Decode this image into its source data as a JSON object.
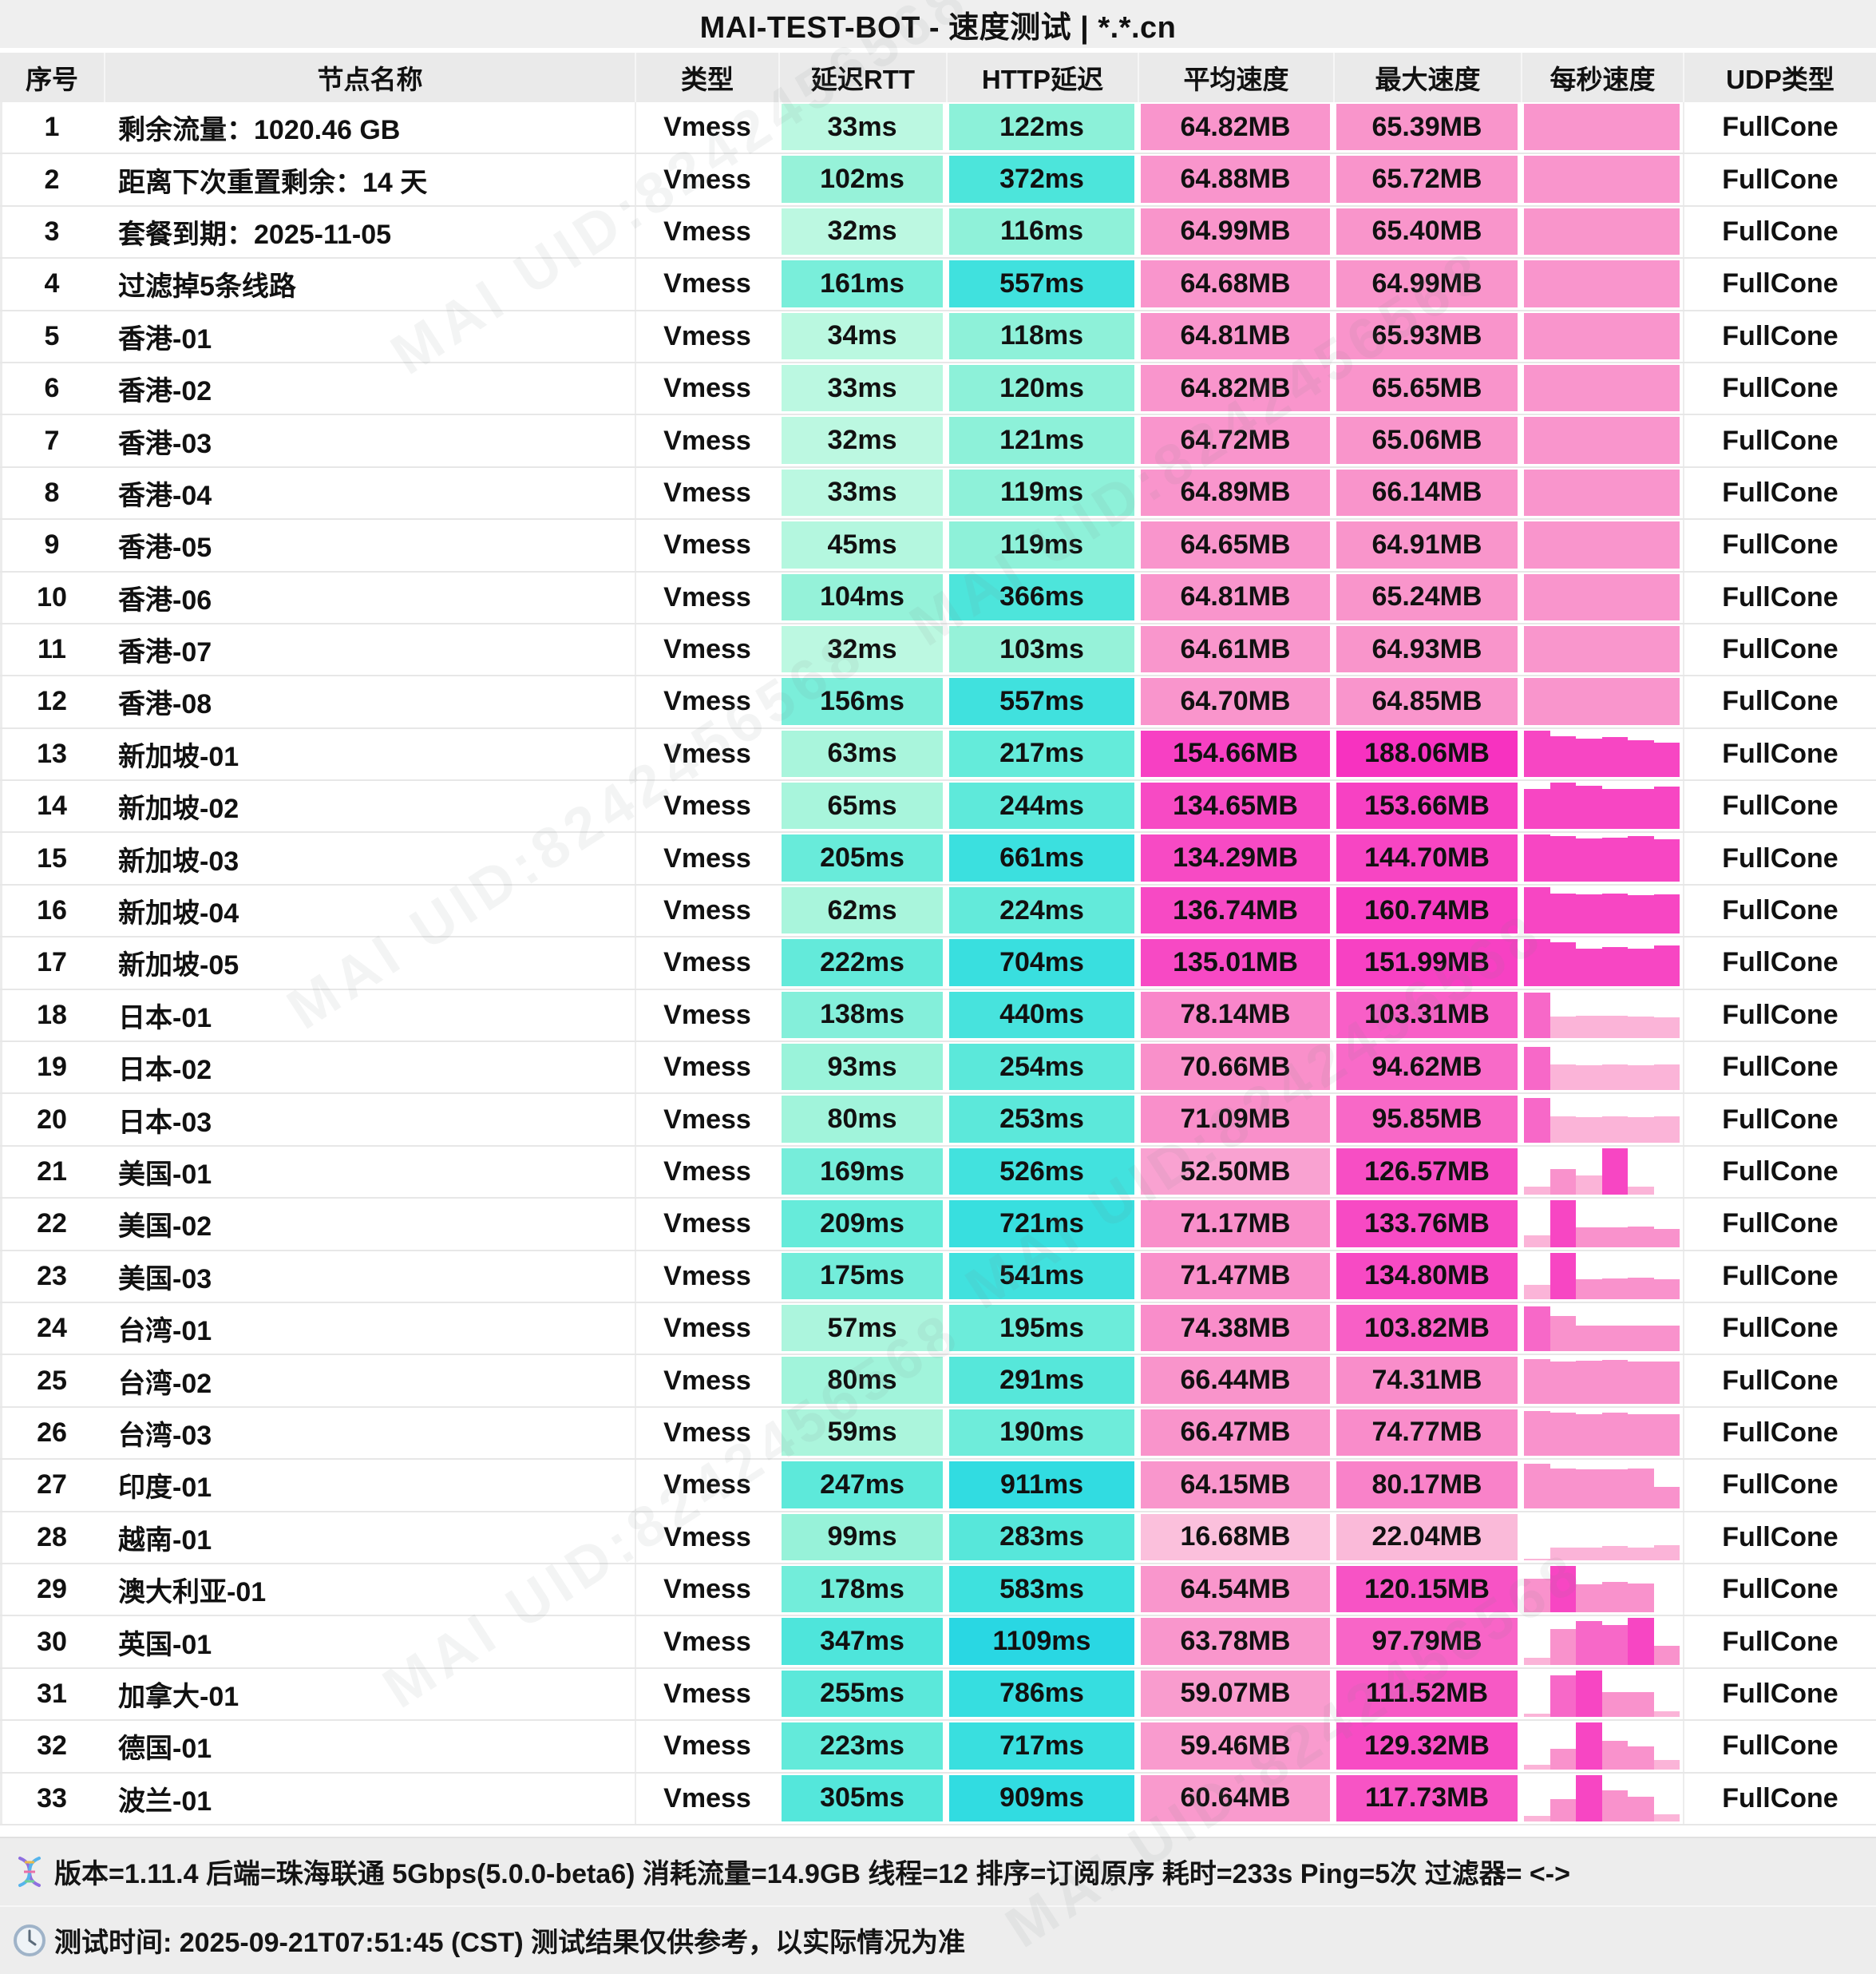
{
  "title": "MAI-TEST-BOT - 速度测试 | *.*.cn",
  "columns": [
    "序号",
    "节点名称",
    "类型",
    "延迟RTT",
    "HTTP延迟",
    "平均速度",
    "最大速度",
    "每秒速度",
    "UDP类型"
  ],
  "watermark": "MAI UID:8242456568",
  "palette": {
    "latency_stops": [
      [
        30,
        "#bdf8e1"
      ],
      [
        60,
        "#aaf5dc"
      ],
      [
        100,
        "#97f2d9"
      ],
      [
        160,
        "#79eeda"
      ],
      [
        210,
        "#66ebda"
      ],
      [
        260,
        "#5ae8da"
      ],
      [
        350,
        "#4ee5db"
      ],
      [
        450,
        "#46e3dd"
      ],
      [
        570,
        "#3fe1de"
      ],
      [
        730,
        "#38dfdf"
      ],
      [
        930,
        "#30dce1"
      ],
      [
        1120,
        "#29d7e3"
      ]
    ],
    "speed_stops": [
      [
        15,
        "#fbc2dd"
      ],
      [
        25,
        "#fab7d8"
      ],
      [
        55,
        "#f9a0d0"
      ],
      [
        66,
        "#f994cb"
      ],
      [
        75,
        "#f98cca"
      ],
      [
        90,
        "#f870c8"
      ],
      [
        100,
        "#f862c7"
      ],
      [
        115,
        "#f756c5"
      ],
      [
        130,
        "#f74cc4"
      ],
      [
        150,
        "#f742c3"
      ],
      [
        170,
        "#f73ac2"
      ],
      [
        190,
        "#f731c0"
      ]
    ],
    "bar_colors": {
      "hot": "#f746c3",
      "mid": "#f768c8",
      "pink": "#f992cc",
      "light": "#fbb4d8"
    }
  },
  "rows": [
    {
      "idx": "1",
      "name": "剩余流量：1020.46 GB",
      "type": "Vmess",
      "rtt": "33ms",
      "rtt_ms": 33,
      "http": "122ms",
      "http_ms": 122,
      "avg": "64.82MB",
      "avg_mb": 64.82,
      "max": "65.39MB",
      "max_mb": 65.39,
      "udp": "FullCone",
      "bars": "solid"
    },
    {
      "idx": "2",
      "name": "距离下次重置剩余：14 天",
      "type": "Vmess",
      "rtt": "102ms",
      "rtt_ms": 102,
      "http": "372ms",
      "http_ms": 372,
      "avg": "64.88MB",
      "avg_mb": 64.88,
      "max": "65.72MB",
      "max_mb": 65.72,
      "udp": "FullCone",
      "bars": "solid"
    },
    {
      "idx": "3",
      "name": "套餐到期：2025-11-05",
      "type": "Vmess",
      "rtt": "32ms",
      "rtt_ms": 32,
      "http": "116ms",
      "http_ms": 116,
      "avg": "64.99MB",
      "avg_mb": 64.99,
      "max": "65.40MB",
      "max_mb": 65.4,
      "udp": "FullCone",
      "bars": "solid"
    },
    {
      "idx": "4",
      "name": "过滤掉5条线路",
      "type": "Vmess",
      "rtt": "161ms",
      "rtt_ms": 161,
      "http": "557ms",
      "http_ms": 557,
      "avg": "64.68MB",
      "avg_mb": 64.68,
      "max": "64.99MB",
      "max_mb": 64.99,
      "udp": "FullCone",
      "bars": "solid"
    },
    {
      "idx": "5",
      "name": "香港-01",
      "type": "Vmess",
      "rtt": "34ms",
      "rtt_ms": 34,
      "http": "118ms",
      "http_ms": 118,
      "avg": "64.81MB",
      "avg_mb": 64.81,
      "max": "65.93MB",
      "max_mb": 65.93,
      "udp": "FullCone",
      "bars": "solid"
    },
    {
      "idx": "6",
      "name": "香港-02",
      "type": "Vmess",
      "rtt": "33ms",
      "rtt_ms": 33,
      "http": "120ms",
      "http_ms": 120,
      "avg": "64.82MB",
      "avg_mb": 64.82,
      "max": "65.65MB",
      "max_mb": 65.65,
      "udp": "FullCone",
      "bars": "solid"
    },
    {
      "idx": "7",
      "name": "香港-03",
      "type": "Vmess",
      "rtt": "32ms",
      "rtt_ms": 32,
      "http": "121ms",
      "http_ms": 121,
      "avg": "64.72MB",
      "avg_mb": 64.72,
      "max": "65.06MB",
      "max_mb": 65.06,
      "udp": "FullCone",
      "bars": "solid"
    },
    {
      "idx": "8",
      "name": "香港-04",
      "type": "Vmess",
      "rtt": "33ms",
      "rtt_ms": 33,
      "http": "119ms",
      "http_ms": 119,
      "avg": "64.89MB",
      "avg_mb": 64.89,
      "max": "66.14MB",
      "max_mb": 66.14,
      "udp": "FullCone",
      "bars": "solid"
    },
    {
      "idx": "9",
      "name": "香港-05",
      "type": "Vmess",
      "rtt": "45ms",
      "rtt_ms": 45,
      "http": "119ms",
      "http_ms": 119,
      "avg": "64.65MB",
      "avg_mb": 64.65,
      "max": "64.91MB",
      "max_mb": 64.91,
      "udp": "FullCone",
      "bars": "solid"
    },
    {
      "idx": "10",
      "name": "香港-06",
      "type": "Vmess",
      "rtt": "104ms",
      "rtt_ms": 104,
      "http": "366ms",
      "http_ms": 366,
      "avg": "64.81MB",
      "avg_mb": 64.81,
      "max": "65.24MB",
      "max_mb": 65.24,
      "udp": "FullCone",
      "bars": "solid"
    },
    {
      "idx": "11",
      "name": "香港-07",
      "type": "Vmess",
      "rtt": "32ms",
      "rtt_ms": 32,
      "http": "103ms",
      "http_ms": 103,
      "avg": "64.61MB",
      "avg_mb": 64.61,
      "max": "64.93MB",
      "max_mb": 64.93,
      "udp": "FullCone",
      "bars": "solid"
    },
    {
      "idx": "12",
      "name": "香港-08",
      "type": "Vmess",
      "rtt": "156ms",
      "rtt_ms": 156,
      "http": "557ms",
      "http_ms": 557,
      "avg": "64.70MB",
      "avg_mb": 64.7,
      "max": "64.85MB",
      "max_mb": 64.85,
      "udp": "FullCone",
      "bars": "solid"
    },
    {
      "idx": "13",
      "name": "新加坡-01",
      "type": "Vmess",
      "rtt": "63ms",
      "rtt_ms": 63,
      "http": "217ms",
      "http_ms": 217,
      "avg": "154.66MB",
      "avg_mb": 154.66,
      "max": "188.06MB",
      "max_mb": 188.06,
      "udp": "FullCone",
      "bars": [
        [
          1,
          "hot"
        ],
        [
          0.87,
          "hot"
        ],
        [
          0.83,
          "hot"
        ],
        [
          0.86,
          "hot"
        ],
        [
          0.79,
          "hot"
        ],
        [
          0.73,
          "hot"
        ]
      ]
    },
    {
      "idx": "14",
      "name": "新加坡-02",
      "type": "Vmess",
      "rtt": "65ms",
      "rtt_ms": 65,
      "http": "244ms",
      "http_ms": 244,
      "avg": "134.65MB",
      "avg_mb": 134.65,
      "max": "153.66MB",
      "max_mb": 153.66,
      "udp": "FullCone",
      "bars": [
        [
          0.86,
          "hot"
        ],
        [
          1,
          "hot"
        ],
        [
          0.94,
          "hot"
        ],
        [
          0.87,
          "hot"
        ],
        [
          0.87,
          "hot"
        ],
        [
          0.91,
          "hot"
        ]
      ]
    },
    {
      "idx": "15",
      "name": "新加坡-03",
      "type": "Vmess",
      "rtt": "205ms",
      "rtt_ms": 205,
      "http": "661ms",
      "http_ms": 661,
      "avg": "134.29MB",
      "avg_mb": 134.29,
      "max": "144.70MB",
      "max_mb": 144.7,
      "udp": "FullCone",
      "bars": [
        [
          1,
          "hot"
        ],
        [
          0.98,
          "hot"
        ],
        [
          0.93,
          "hot"
        ],
        [
          0.94,
          "hot"
        ],
        [
          0.97,
          "hot"
        ],
        [
          0.9,
          "hot"
        ]
      ]
    },
    {
      "idx": "16",
      "name": "新加坡-04",
      "type": "Vmess",
      "rtt": "62ms",
      "rtt_ms": 62,
      "http": "224ms",
      "http_ms": 224,
      "avg": "136.74MB",
      "avg_mb": 136.74,
      "max": "160.74MB",
      "max_mb": 160.74,
      "udp": "FullCone",
      "bars": [
        [
          1,
          "hot"
        ],
        [
          0.86,
          "hot"
        ],
        [
          0.85,
          "hot"
        ],
        [
          0.86,
          "hot"
        ],
        [
          0.83,
          "hot"
        ],
        [
          0.85,
          "hot"
        ]
      ]
    },
    {
      "idx": "17",
      "name": "新加坡-05",
      "type": "Vmess",
      "rtt": "222ms",
      "rtt_ms": 222,
      "http": "704ms",
      "http_ms": 704,
      "avg": "135.01MB",
      "avg_mb": 135.01,
      "max": "151.99MB",
      "max_mb": 151.99,
      "udp": "FullCone",
      "bars": [
        [
          1,
          "hot"
        ],
        [
          0.94,
          "hot"
        ],
        [
          0.8,
          "hot"
        ],
        [
          0.83,
          "hot"
        ],
        [
          0.8,
          "hot"
        ],
        [
          0.87,
          "hot"
        ]
      ]
    },
    {
      "idx": "18",
      "name": "日本-01",
      "type": "Vmess",
      "rtt": "138ms",
      "rtt_ms": 138,
      "http": "440ms",
      "http_ms": 440,
      "avg": "78.14MB",
      "avg_mb": 78.14,
      "max": "103.31MB",
      "max_mb": 103.31,
      "udp": "FullCone",
      "bars": [
        [
          0.97,
          "mid"
        ],
        [
          0.47,
          "light"
        ],
        [
          0.48,
          "light"
        ],
        [
          0.48,
          "light"
        ],
        [
          0.47,
          "light"
        ],
        [
          0.44,
          "light"
        ]
      ]
    },
    {
      "idx": "19",
      "name": "日本-02",
      "type": "Vmess",
      "rtt": "93ms",
      "rtt_ms": 93,
      "http": "254ms",
      "http_ms": 254,
      "avg": "70.66MB",
      "avg_mb": 70.66,
      "max": "94.62MB",
      "max_mb": 94.62,
      "udp": "FullCone",
      "bars": [
        [
          0.93,
          "mid"
        ],
        [
          0.56,
          "light"
        ],
        [
          0.54,
          "light"
        ],
        [
          0.55,
          "light"
        ],
        [
          0.53,
          "light"
        ],
        [
          0.55,
          "light"
        ]
      ]
    },
    {
      "idx": "20",
      "name": "日本-03",
      "type": "Vmess",
      "rtt": "80ms",
      "rtt_ms": 80,
      "http": "253ms",
      "http_ms": 253,
      "avg": "71.09MB",
      "avg_mb": 71.09,
      "max": "95.85MB",
      "max_mb": 95.85,
      "udp": "FullCone",
      "bars": [
        [
          0.95,
          "mid"
        ],
        [
          0.57,
          "light"
        ],
        [
          0.55,
          "light"
        ],
        [
          0.57,
          "light"
        ],
        [
          0.55,
          "light"
        ],
        [
          0.57,
          "light"
        ]
      ]
    },
    {
      "idx": "21",
      "name": "美国-01",
      "type": "Vmess",
      "rtt": "169ms",
      "rtt_ms": 169,
      "http": "526ms",
      "http_ms": 526,
      "avg": "52.50MB",
      "avg_mb": 52.5,
      "max": "126.57MB",
      "max_mb": 126.57,
      "udp": "FullCone",
      "bars": [
        [
          0.18,
          "light"
        ],
        [
          0.55,
          "pink"
        ],
        [
          0.42,
          "light"
        ],
        [
          1,
          "hot"
        ],
        [
          0.17,
          "light"
        ],
        [
          0,
          "light"
        ]
      ]
    },
    {
      "idx": "22",
      "name": "美国-02",
      "type": "Vmess",
      "rtt": "209ms",
      "rtt_ms": 209,
      "http": "721ms",
      "http_ms": 721,
      "avg": "71.17MB",
      "avg_mb": 71.17,
      "max": "133.76MB",
      "max_mb": 133.76,
      "udp": "FullCone",
      "bars": [
        [
          0.25,
          "light"
        ],
        [
          1,
          "hot"
        ],
        [
          0.43,
          "pink"
        ],
        [
          0.43,
          "pink"
        ],
        [
          0.44,
          "pink"
        ],
        [
          0.38,
          "pink"
        ]
      ]
    },
    {
      "idx": "23",
      "name": "美国-03",
      "type": "Vmess",
      "rtt": "175ms",
      "rtt_ms": 175,
      "http": "541ms",
      "http_ms": 541,
      "avg": "71.47MB",
      "avg_mb": 71.47,
      "max": "134.80MB",
      "max_mb": 134.8,
      "udp": "FullCone",
      "bars": [
        [
          0.3,
          "light"
        ],
        [
          1,
          "hot"
        ],
        [
          0.43,
          "pink"
        ],
        [
          0.44,
          "pink"
        ],
        [
          0.46,
          "pink"
        ],
        [
          0.42,
          "pink"
        ]
      ]
    },
    {
      "idx": "24",
      "name": "台湾-01",
      "type": "Vmess",
      "rtt": "57ms",
      "rtt_ms": 57,
      "http": "195ms",
      "http_ms": 195,
      "avg": "74.38MB",
      "avg_mb": 74.38,
      "max": "103.82MB",
      "max_mb": 103.82,
      "udp": "FullCone",
      "bars": [
        [
          0.97,
          "mid"
        ],
        [
          0.76,
          "pink"
        ],
        [
          0.55,
          "pink"
        ],
        [
          0.55,
          "pink"
        ],
        [
          0.55,
          "pink"
        ],
        [
          0.55,
          "pink"
        ]
      ]
    },
    {
      "idx": "25",
      "name": "台湾-02",
      "type": "Vmess",
      "rtt": "80ms",
      "rtt_ms": 80,
      "http": "291ms",
      "http_ms": 291,
      "avg": "66.44MB",
      "avg_mb": 66.44,
      "max": "74.31MB",
      "max_mb": 74.31,
      "udp": "FullCone",
      "bars": [
        [
          0.96,
          "pink"
        ],
        [
          0.9,
          "pink"
        ],
        [
          0.92,
          "pink"
        ],
        [
          0.93,
          "pink"
        ],
        [
          0.9,
          "pink"
        ],
        [
          0.9,
          "pink"
        ]
      ]
    },
    {
      "idx": "26",
      "name": "台湾-03",
      "type": "Vmess",
      "rtt": "59ms",
      "rtt_ms": 59,
      "http": "190ms",
      "http_ms": 190,
      "avg": "66.47MB",
      "avg_mb": 66.47,
      "max": "74.77MB",
      "max_mb": 74.77,
      "udp": "FullCone",
      "bars": [
        [
          0.96,
          "pink"
        ],
        [
          0.92,
          "pink"
        ],
        [
          0.9,
          "pink"
        ],
        [
          0.92,
          "pink"
        ],
        [
          0.9,
          "pink"
        ],
        [
          0.9,
          "pink"
        ]
      ]
    },
    {
      "idx": "27",
      "name": "印度-01",
      "type": "Vmess",
      "rtt": "247ms",
      "rtt_ms": 247,
      "http": "911ms",
      "http_ms": 911,
      "avg": "64.15MB",
      "avg_mb": 64.15,
      "max": "80.17MB",
      "max_mb": 80.17,
      "udp": "FullCone",
      "bars": [
        [
          0.96,
          "pink"
        ],
        [
          0.85,
          "pink"
        ],
        [
          0.83,
          "pink"
        ],
        [
          0.83,
          "pink"
        ],
        [
          0.85,
          "pink"
        ],
        [
          0.45,
          "pink"
        ]
      ]
    },
    {
      "idx": "28",
      "name": "越南-01",
      "type": "Vmess",
      "rtt": "99ms",
      "rtt_ms": 99,
      "http": "283ms",
      "http_ms": 283,
      "avg": "16.68MB",
      "avg_mb": 16.68,
      "max": "22.04MB",
      "max_mb": 22.04,
      "udp": "FullCone",
      "bars": [
        [
          0.04,
          "light"
        ],
        [
          0.27,
          "light"
        ],
        [
          0.28,
          "light"
        ],
        [
          0.3,
          "light"
        ],
        [
          0.27,
          "light"
        ],
        [
          0.33,
          "light"
        ]
      ]
    },
    {
      "idx": "29",
      "name": "澳大利亚-01",
      "type": "Vmess",
      "rtt": "178ms",
      "rtt_ms": 178,
      "http": "583ms",
      "http_ms": 583,
      "avg": "64.54MB",
      "avg_mb": 64.54,
      "max": "120.15MB",
      "max_mb": 120.15,
      "udp": "FullCone",
      "bars": [
        [
          0.72,
          "pink"
        ],
        [
          1,
          "hot"
        ],
        [
          0.61,
          "pink"
        ],
        [
          0.65,
          "pink"
        ],
        [
          0.62,
          "pink"
        ],
        [
          0,
          "light"
        ]
      ]
    },
    {
      "idx": "30",
      "name": "英国-01",
      "type": "Vmess",
      "rtt": "347ms",
      "rtt_ms": 347,
      "http": "1109ms",
      "http_ms": 1109,
      "avg": "63.78MB",
      "avg_mb": 63.78,
      "max": "97.79MB",
      "max_mb": 97.79,
      "udp": "FullCone",
      "bars": [
        [
          0.15,
          "light"
        ],
        [
          0.77,
          "pink"
        ],
        [
          0.93,
          "mid"
        ],
        [
          0.85,
          "mid"
        ],
        [
          1,
          "hot"
        ],
        [
          0.4,
          "pink"
        ]
      ]
    },
    {
      "idx": "31",
      "name": "加拿大-01",
      "type": "Vmess",
      "rtt": "255ms",
      "rtt_ms": 255,
      "http": "786ms",
      "http_ms": 786,
      "avg": "59.07MB",
      "avg_mb": 59.07,
      "max": "111.52MB",
      "max_mb": 111.52,
      "udp": "FullCone",
      "bars": [
        [
          0.07,
          "light"
        ],
        [
          0.9,
          "mid"
        ],
        [
          1,
          "hot"
        ],
        [
          0.54,
          "pink"
        ],
        [
          0.54,
          "pink"
        ],
        [
          0.13,
          "light"
        ]
      ]
    },
    {
      "idx": "32",
      "name": "德国-01",
      "type": "Vmess",
      "rtt": "223ms",
      "rtt_ms": 223,
      "http": "717ms",
      "http_ms": 717,
      "avg": "59.46MB",
      "avg_mb": 59.46,
      "max": "129.32MB",
      "max_mb": 129.32,
      "udp": "FullCone",
      "bars": [
        [
          0.1,
          "light"
        ],
        [
          0.44,
          "pink"
        ],
        [
          1,
          "hot"
        ],
        [
          0.6,
          "pink"
        ],
        [
          0.49,
          "pink"
        ],
        [
          0.2,
          "light"
        ]
      ]
    },
    {
      "idx": "33",
      "name": "波兰-01",
      "type": "Vmess",
      "rtt": "305ms",
      "rtt_ms": 305,
      "http": "909ms",
      "http_ms": 909,
      "avg": "60.64MB",
      "avg_mb": 60.64,
      "max": "117.73MB",
      "max_mb": 117.73,
      "udp": "FullCone",
      "bars": [
        [
          0.12,
          "light"
        ],
        [
          0.47,
          "pink"
        ],
        [
          1,
          "hot"
        ],
        [
          0.66,
          "pink"
        ],
        [
          0.53,
          "pink"
        ],
        [
          0.15,
          "light"
        ]
      ]
    }
  ],
  "footer": {
    "line1": "版本=1.11.4  后端=珠海联通 5Gbps(5.0.0-beta6) 消耗流量=14.9GB  线程=12  排序=订阅原序  耗时=233s  Ping=5次  过滤器= <->",
    "line2": "测试时间: 2025-09-21T07:51:45 (CST)  测试结果仅供参考，以实际情况为准"
  }
}
